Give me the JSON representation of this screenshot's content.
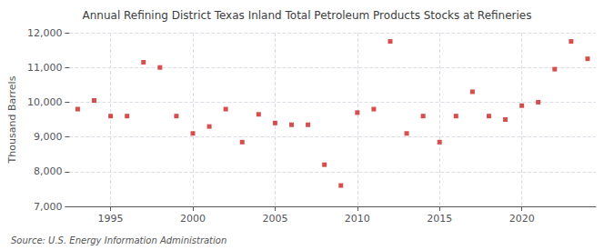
{
  "chart_data": {
    "type": "scatter",
    "title": "Annual Refining District Texas Inland Total Petroleum Products Stocks at Refineries",
    "y_label": "Thousand Barrels",
    "annotations": [
      "Source: U.S. Energy Information Administration"
    ],
    "x": [
      1993,
      1994,
      1995,
      1996,
      1997,
      1998,
      1999,
      2000,
      2001,
      2002,
      2003,
      2004,
      2005,
      2006,
      2007,
      2008,
      2009,
      2010,
      2011,
      2012,
      2013,
      2014,
      2015,
      2016,
      2017,
      2018,
      2019,
      2020,
      2021,
      2022,
      2023,
      2024
    ],
    "values": [
      9800,
      10050,
      9600,
      9600,
      11150,
      11000,
      9600,
      9100,
      9300,
      9800,
      8850,
      9650,
      9400,
      9350,
      9350,
      8200,
      7600,
      9700,
      9800,
      11750,
      9100,
      9600,
      8850,
      9600,
      10300,
      9600,
      9500,
      9900,
      10000,
      10950,
      11750,
      11250
    ],
    "color": "#cc2222",
    "marker": "square",
    "xlim": [
      1992.5,
      2024.5
    ],
    "xticks": [
      1995,
      2000,
      2005,
      2010,
      2015,
      2020
    ],
    "ylim": [
      7000,
      12000
    ],
    "yticks": [
      {
        "value": 7000,
        "label": "7,000"
      },
      {
        "value": 8000,
        "label": "8,000"
      },
      {
        "value": 9000,
        "label": "9,000"
      },
      {
        "value": 10000,
        "label": "10,000"
      },
      {
        "value": 11000,
        "label": "11,000"
      },
      {
        "value": 12000,
        "label": "12,000"
      }
    ],
    "grid": true
  }
}
